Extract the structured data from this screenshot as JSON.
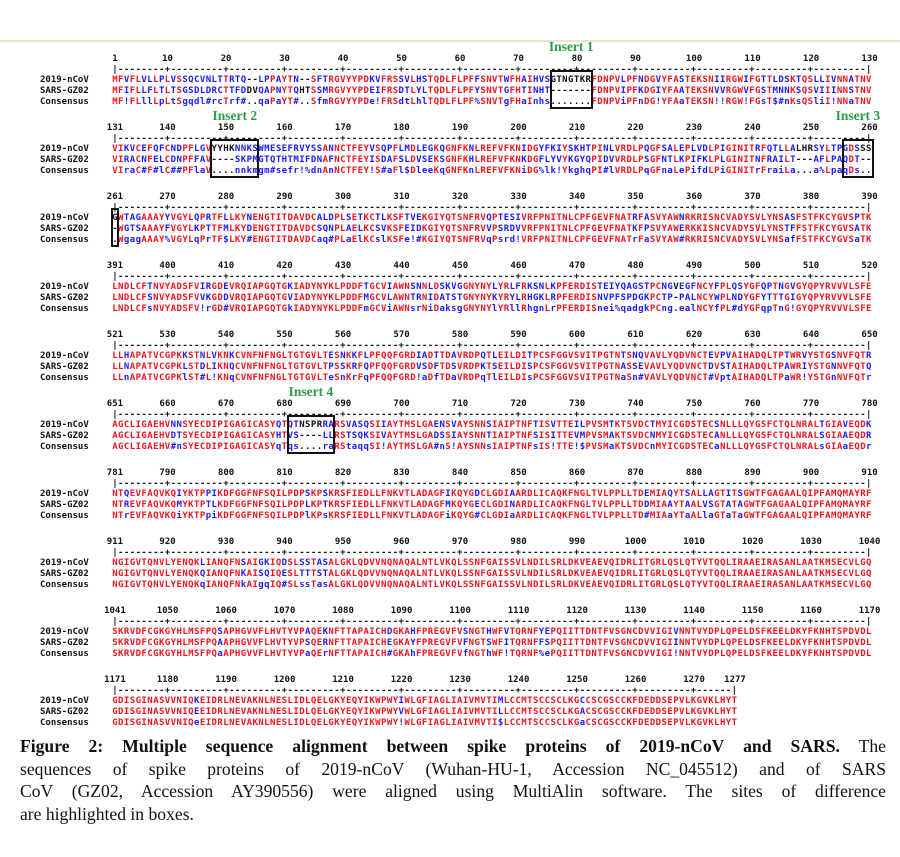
{
  "row_labels": [
    "2019-nCoV",
    "SARS-GZ02",
    "Consensus"
  ],
  "colors": {
    "identical": "#f0141e",
    "similar": "#1a1aff",
    "gap": "#111111",
    "insert_label": "#2e9b45"
  },
  "blocks": [
    {
      "start": 1,
      "ticks": [
        "1",
        "10",
        "20",
        "30",
        "40",
        "50",
        "60",
        "70",
        "80",
        "90",
        "100",
        "110",
        "120",
        "130"
      ],
      "ncov": "MFVFLVLLPLVSSQCVNLTTRTQ--LPPAYTN--SFTRGVYYPDKVFRSSVLHSTQDLFLPFFSNVTWFHAIHVSGTNGTKRFDNPVLPFNDGVYFASTEKSNIIRGWIFGTTLDSKTQSLLIVNNATNV",
      "sars": "MFIFLLFLTLTSGSDLDRCTTFDDVQAPNYTQHTSSMRGVYYPDEIFRSDTLYLTQDLFLPFYSNVTGFHTINHT-------FDNPVIPFKDGIYFAATEKSNVVRGWVFGSTMNNKSQSVIIINNSTNV",
      "consensus": "MF!FLllLpLtSgqdl#rcTrf#..qaPaYT#..SfmRGVYYPDe!FRSdtLhlTQDLFLPF%SNVTgFHaInhs.......FDNPViPFnDG!YFAaTEKSN!!RGW!FGsT$#nKsQSliI!NNaTNV"
    },
    {
      "start": 131,
      "ticks": [
        "131",
        "140",
        "150",
        "160",
        "170",
        "180",
        "190",
        "200",
        "210",
        "220",
        "230",
        "240",
        "250",
        "260"
      ],
      "ncov": "VIKVCEFQFCNDPFLGVYYHKNNKSWMESEFRVYSSANNCTFEYVSQPFLMDLEGKQGNFKNLREFVFKNIDGYFKIYSKHTPINLVRDLPQGFSALEPLVDLPIGINITRFQTLLALHRSYLTPGDSSS",
      "sars": "VIRACNFELCDNPFFAV----SKPMGTQTHTMIFDNAFNCTFEYISDAFSLDVSEKSGNFKHLREFVFKNKDGFLYVYKGYQPIDVVRDLPSGFNTLKPIFKLPLGINITNFRAILT---AFLPAQDT--",
      "consensus": "VIraC#F#lC##PFlaV....nnkmgm#sefr!%dnAnNCTFEY!S#aFl$DleeKqGNFKnLREFVFKNiDG%lk!YkghqPI#lVRDLPqGFnaLePifdLPiGINITrFraiLa...a%LpaqDs.."
    },
    {
      "start": 261,
      "ticks": [
        "261",
        "270",
        "280",
        "290",
        "300",
        "310",
        "320",
        "330",
        "340",
        "350",
        "360",
        "370",
        "380",
        "390"
      ],
      "ncov": "GWTAGAAAYYVGYLQPRTFLLKYNENGTITDAVDCALDPLSETKCTLKSFTVEKGIYQTSNFRVQPTESIVRFPNITNLCPFGEVFNATRFASVYAWNRKRISNCVADYSVLYNSASFSTFKCYGVSPTK",
      "sars": "-WGTSAAAYFVGYLKPTTFMLKYDENGTITDAVDCSQNPLAELKCSVKSFEIDKGIYQTSNFRVVPSRDVVRFPNITNLCPFGEVFNATKFPSVYAWERKKISNCVADYSVLYNSTFFSTFKCYGVSATK",
      "consensus": ".WgagAAAY%VGYLqPrTF$LKY#ENGTITDAVDCaq#PLaElKCslKSFe!#KGIYQTSNFRVqPsrd!VRFPNITNLCPFGEVFNATrFaSVYAW#RKRISNCVADYSVLYNSafFSTFKCYGVSaTK"
    },
    {
      "start": 391,
      "ticks": [
        "391",
        "400",
        "410",
        "420",
        "430",
        "440",
        "450",
        "460",
        "470",
        "480",
        "490",
        "500",
        "510",
        "520"
      ],
      "ncov": "LNDLCFTNVYADSFVIRGDEVRQIAPGQTGKIADYNYKLPDDFTGCVIAWNSNNLDSKVGGNYNYLYRLFRKSNLKPFERDISTEIYQAGSTPCNGVEGFNCYFPLQSYGFQPTNGVGYQPYRVVVLSFE",
      "sars": "LNDLCFSNVYADSFVVKGDDVRQIAPGQTGVIADYNYKLPDDFMGCVLAWNTRNIDATSTGNYNYKYRYLRHGKLRPFERDISNVPFSPDGKPCTP-PALNCYWPLNDYGFYTTTGIGYQPYRVVVLSFE",
      "consensus": "LNDLCFsNVYADSFV!rGD#VRQIAPGQTGkIADYNYKLPDDFmGCViAWNsrNiDaksgGNYNYlYRllRhgnLrPFERDISnei%qadgkPCng.ealNCYfPL#dYGFqpTnG!GYQPYRVVVLSFE"
    },
    {
      "start": 521,
      "ticks": [
        "521",
        "530",
        "540",
        "550",
        "560",
        "570",
        "580",
        "590",
        "600",
        "610",
        "620",
        "630",
        "640",
        "650"
      ],
      "ncov": "LLHAPATVCGPKKSTNLVKNKCVNFNFNGLTGTGVLTESNKKFLPFQQFGRDIADTTDAVRDPQTLEILDITPCSFGGVSVITPGTNTSNQVAVLYQDVNCTEVPVAIHADQLTPTWRVYSTGSNVFQTR",
      "sars": "LLNAPATVCGPKLSTDLIKNQCVNFNFNGLTGTGVLTPSSKRFQPFQQFGRDVSDFTDSVRDPKTSEILDISPCSFGGVSVITPGTNASSEVAVLYQDVNCTDVSTAIHADQLTPAWRIYSTGNNVFQTQ",
      "consensus": "LLnAPATVCGPKlST#L!KNqCVNFNFNGLTGTGVLTeSnKrFqPFQQFGRD!aDfTDaVRDPqTlEILDIsPCSFGGVSVITPGTNaSn#VAVLYQDVNCT#VptAIHADQLTPaWR!YSTGnNVFQTr"
    },
    {
      "start": 651,
      "ticks": [
        "651",
        "660",
        "670",
        "680",
        "690",
        "700",
        "710",
        "720",
        "730",
        "740",
        "750",
        "760",
        "770",
        "780"
      ],
      "ncov": "AGCLIGAEHVNNSYECDIPIGAGICASYQTQTNSPRRARSVASQSIIAYTMSLGAENSVAYSNNSIAIPTNFTISVTTEILPVSMTKTSVDCTMYICGDSTECSNLLLQYGSFCTQLNRALTGIAVEQDK",
      "sars": "AGCLIGAEHVDTSYECDIPIGAGICASYHTVS----LLRSTSQKSIVAYTMSLGADSSIAYSNNTIAIPTNFSISITTEVMPVSMAKTSVDCNMYICGDSTECANLLLQYGSFCTQLNRALSGIAAEQDR",
      "consensus": "AGCLIGAEHV#nSYECDIPIGAGICASYqTqs....raRStaqqSI!AYTMSLGA#nS!AYSNNsIAIPTNFsIS!TTE!$PVSMaKTSVDCnMYICGDSTECaNLLLQYGSFCTQLNRALsGIAaEQDr"
    },
    {
      "start": 781,
      "ticks": [
        "781",
        "790",
        "800",
        "810",
        "820",
        "830",
        "840",
        "850",
        "860",
        "870",
        "880",
        "890",
        "900",
        "910"
      ],
      "ncov": "NTQEVFAQVKQIYKTPPIKDFGGFNFSQILPDPSKPSKRSFIEDLLFNKVTLADAGFIKQYGDCLGDIAARDLICAQKFNGLTVLPPLLTDEMIAQYTSALLAGTITSGWTFGAGAALQIPFAMQMAYRF",
      "sars": "NTREVFAQVKQMYKTPTLKDFGGFNFSQILPDPLKPTKRSFIEDLLFNKVTLADAGFMKQYGECLGDINARDLICAQKFNGLTVLPPLLTDDMIAAYTAALVSGTATAGWTFGAGAALQIPFAMQMAYRF",
      "consensus": "NTrEVFAQVKQiYKTPpiKDFGGFNFSQILPDPlKPsKRSFIEDLLFNKVTLADAGFiKQYG#CLGDIaARDLICAQKFNGLTVLPPLLTD#MIAaYTaALlaGTaTaGWTFGAGAALQIPFAMQMAYRF"
    },
    {
      "start": 911,
      "ticks": [
        "911",
        "920",
        "930",
        "940",
        "950",
        "960",
        "970",
        "980",
        "990",
        "1000",
        "1010",
        "1020",
        "1030",
        "1040"
      ],
      "ncov": "NGIGVTQNVLYENQKLIANQFNSAIGKIQDSLSSTASALGKLQDVVNQNAQALNTLVKQLSSNFGAISSVLNDILSRLDKVEAEVQIDRLITGRLQSLQTYVTQQLIRAAEIRASANLAATKMSECVLGQ",
      "sars": "NGIGVTQNVLYENQKQIANQFNKAISQIQESLTTTSTALGKLQDVVNQNAQALNTLVKQLSSNFGAISSVLNDILSRLDKVEAEVQIDRLITGRLQSLQTYVTQQLIRAAEIRASANLAATKMSECVLGQ",
      "consensus": "NGIGVTQNVLYENQKqIANQFNkAIgqIQ#SLssTasALGKLQDVVNQNAQALNTLVKQLSSNFGAISSVLNDILSRLDKVEAEVQIDRLITGRLQSLQTYVTQQLIRAAEIRASANLAATKMSECVLGQ"
    },
    {
      "start": 1041,
      "ticks": [
        "1041",
        "1050",
        "1060",
        "1070",
        "1080",
        "1090",
        "1100",
        "1110",
        "1120",
        "1130",
        "1140",
        "1150",
        "1160",
        "1170"
      ],
      "ncov": "SKRVDFCGKGYHLMSFPQSAPHGVVFLHVTYVPAQEKNFTTAPAICHDGKAHFPREGVFVSNGTHWFVTQRNFYEPQIITTDNTFVSGNCDVVIGIVNNTVYDPLQPELDSFKEELDKYFKNHTSPDVDL",
      "sars": "SKRVDFCGKGYHLMSFPQAAPHGVVFLHVTYVPSQERNFTTAPAICHEGKAYFPREGVFVFNGTSWFITQRNFFSPQIITTDNTFVSGNCDVVIGIINNTVYDPLQPELDSFKEELDKYFKNHTSPDVDL",
      "consensus": "SKRVDFCGKGYHLMSFPQaAPHGVVFLHVTYVPaQErNFTTAPAICH#GKAhFPREGVFVfNGThWF!TQRNF%ePQIITTDNTFVSGNCDVVIGI!NNTVYDPLQPELDSFKEELDKYFKNHTSPDVDL"
    },
    {
      "start": 1171,
      "ticks": [
        "1171",
        "1180",
        "1190",
        "1200",
        "1210",
        "1220",
        "1230",
        "1240",
        "1250",
        "1260",
        "1270",
        "1277"
      ],
      "ncov": "GDISGINASVVNIQKEIDRLNEVAKNLNESLIDLQELGKYEQYIKWPWYIWLGFIAGLIAIVMVTIMLCCMTSCCSCLKGCCSCGSCCKFDEDDSEPVLKGVKLHYT",
      "sars": "GDISGINASVVNIQEEIDRLNEVAKNLNESLIDLQELGKYEQYIKWPWYVWLGFIAGLIAIVMVTILLCCMTSCCSCLKGACSCGSCCKFDEDDSEPVLKGVKLHYT",
      "consensus": "GDISGINASVVNIQeEIDRLNEVAKNLNESLIDLQELGKYEQYIKWPWY!WLGFIAGLIAIVMVTI$LCCMTSCCSCLKGaCSCGSCCKFDEDDSEPVLKGVKLHYT"
    }
  ],
  "inserts": [
    {
      "label": "Insert 1",
      "block": 0,
      "from": 76,
      "to": 82
    },
    {
      "label": "Insert 2",
      "block": 1,
      "from": 148,
      "to": 155
    },
    {
      "label": "Insert 3",
      "block": 1,
      "from": 256,
      "to": 261
    },
    {
      "label": "Insert 4",
      "block": 5,
      "from": 681,
      "to": 688
    }
  ],
  "caption": {
    "title": "Figure 2: Multiple sequence alignment between spike proteins of 2019-nCoV and SARS.",
    "line1_rest": "The",
    "line2": "sequences of spike proteins of 2019-nCoV (Wuhan-HU-1, Accession NC_045512) and of SARS",
    "line3": "CoV (GZ02, Accession AY390556) were aligned using MultiAlin software. The sites of difference",
    "line4": "are highlighted in  boxes."
  }
}
